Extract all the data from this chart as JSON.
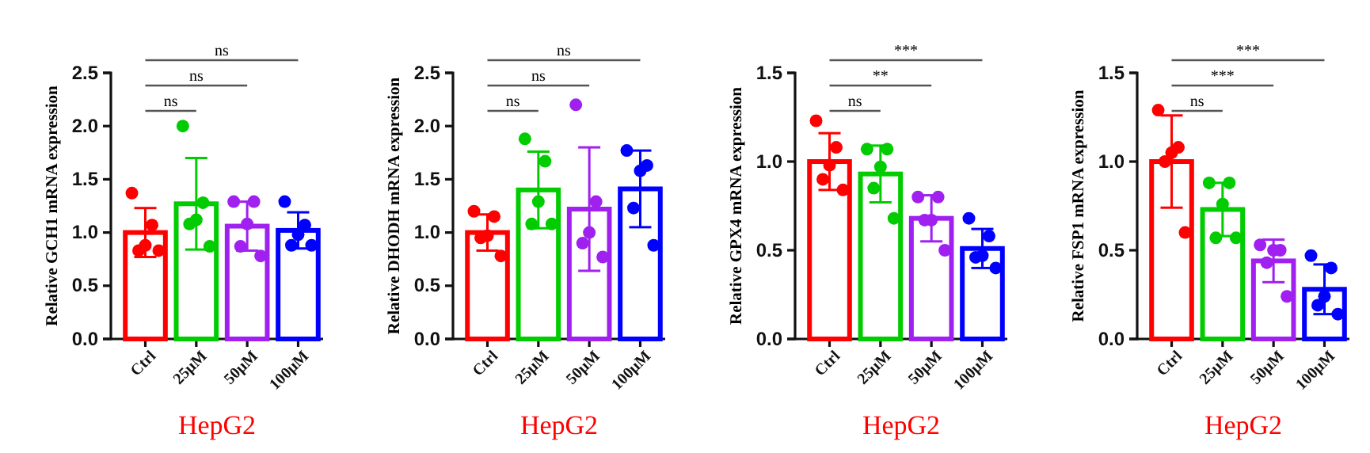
{
  "chart_data": [
    {
      "type": "bar",
      "ylabel": "Relative GCH1 mRNA expression",
      "xlabel": "HepG2",
      "categories": [
        "Ctrl",
        "25μM",
        "50μM",
        "100μM"
      ],
      "ylim": [
        0,
        2.5
      ],
      "yticks": [
        {
          "value": 0,
          "label": "0.0"
        },
        {
          "value": 0.5,
          "label": "0.5"
        },
        {
          "value": 1,
          "label": "1.0"
        },
        {
          "value": 1.5,
          "label": "1.5"
        },
        {
          "value": 2,
          "label": "2.0"
        },
        {
          "value": 2.5,
          "label": "2.5"
        }
      ],
      "annotations": [
        "ns",
        "ns",
        "ns"
      ],
      "series": [
        {
          "type": "bar",
          "values": [
            1.0,
            1.27,
            1.06,
            1.02
          ],
          "errors": [
            0.23,
            0.43,
            0.23,
            0.17
          ],
          "colors": [
            "#ff0000",
            "#00cc00",
            "#a020f0",
            "#0000ff"
          ]
        },
        {
          "type": "scatter",
          "x": [
            "Ctrl",
            "Ctrl",
            "Ctrl",
            "Ctrl",
            "Ctrl",
            "25μM",
            "25μM",
            "25μM",
            "25μM",
            "25μM",
            "50μM",
            "50μM",
            "50μM",
            "50μM",
            "50μM",
            "100μM",
            "100μM",
            "100μM",
            "100μM",
            "100μM"
          ],
          "values": [
            1.37,
            1.07,
            0.88,
            0.83,
            0.83,
            2.0,
            1.28,
            1.12,
            1.08,
            0.87,
            1.29,
            1.29,
            1.08,
            0.87,
            0.78,
            1.29,
            1.07,
            0.98,
            0.88,
            0.88
          ],
          "colors": [
            "#ff0000",
            "#ff0000",
            "#ff0000",
            "#ff0000",
            "#ff0000",
            "#00cc00",
            "#00cc00",
            "#00cc00",
            "#00cc00",
            "#00cc00",
            "#a020f0",
            "#a020f0",
            "#a020f0",
            "#a020f0",
            "#a020f0",
            "#0000ff",
            "#0000ff",
            "#0000ff",
            "#0000ff",
            "#0000ff"
          ]
        }
      ]
    },
    {
      "type": "bar",
      "ylabel": "Relative DHODH mRNA expression",
      "xlabel": "HepG2",
      "categories": [
        "Ctrl",
        "25μM",
        "50μM",
        "100μM"
      ],
      "ylim": [
        0,
        2.5
      ],
      "yticks": [
        {
          "value": 0,
          "label": "0.0"
        },
        {
          "value": 0.5,
          "label": "0.5"
        },
        {
          "value": 1,
          "label": "1.0"
        },
        {
          "value": 1.5,
          "label": "1.5"
        },
        {
          "value": 2,
          "label": "2.0"
        },
        {
          "value": 2.5,
          "label": "2.5"
        }
      ],
      "annotations": [
        "ns",
        "ns",
        "ns"
      ],
      "series": [
        {
          "type": "bar",
          "values": [
            1.0,
            1.4,
            1.22,
            1.41
          ],
          "errors": [
            0.17,
            0.36,
            0.58,
            0.36
          ],
          "colors": [
            "#ff0000",
            "#00cc00",
            "#a020f0",
            "#0000ff"
          ]
        },
        {
          "type": "scatter",
          "x": [
            "Ctrl",
            "Ctrl",
            "Ctrl",
            "Ctrl",
            "Ctrl",
            "25μM",
            "25μM",
            "25μM",
            "25μM",
            "25μM",
            "50μM",
            "50μM",
            "50μM",
            "50μM",
            "50μM",
            "100μM",
            "100μM",
            "100μM",
            "100μM",
            "100μM"
          ],
          "values": [
            1.2,
            1.15,
            0.97,
            0.95,
            0.78,
            1.88,
            1.67,
            1.29,
            1.08,
            1.08,
            2.2,
            1.29,
            1.0,
            0.9,
            0.77,
            1.77,
            1.63,
            1.58,
            1.23,
            0.88
          ],
          "colors": [
            "#ff0000",
            "#ff0000",
            "#ff0000",
            "#ff0000",
            "#ff0000",
            "#00cc00",
            "#00cc00",
            "#00cc00",
            "#00cc00",
            "#00cc00",
            "#a020f0",
            "#a020f0",
            "#a020f0",
            "#a020f0",
            "#a020f0",
            "#0000ff",
            "#0000ff",
            "#0000ff",
            "#0000ff",
            "#0000ff"
          ]
        }
      ]
    },
    {
      "type": "bar",
      "ylabel": "Relative GPX4 mRNA expression",
      "xlabel": "HepG2",
      "categories": [
        "Ctrl",
        "25μM",
        "50μM",
        "100μM"
      ],
      "ylim": [
        0,
        1.5
      ],
      "yticks": [
        {
          "value": 0,
          "label": "0.0"
        },
        {
          "value": 0.5,
          "label": "0.5"
        },
        {
          "value": 1,
          "label": "1.0"
        },
        {
          "value": 1.5,
          "label": "1.5"
        }
      ],
      "annotations": [
        "ns",
        "**",
        "***"
      ],
      "series": [
        {
          "type": "bar",
          "values": [
            1.0,
            0.93,
            0.68,
            0.51
          ],
          "errors": [
            0.16,
            0.16,
            0.13,
            0.11
          ],
          "colors": [
            "#ff0000",
            "#00cc00",
            "#a020f0",
            "#0000ff"
          ]
        },
        {
          "type": "scatter",
          "x": [
            "Ctrl",
            "Ctrl",
            "Ctrl",
            "Ctrl",
            "Ctrl",
            "25μM",
            "25μM",
            "25μM",
            "25μM",
            "25μM",
            "50μM",
            "50μM",
            "50μM",
            "50μM",
            "50μM",
            "100μM",
            "100μM",
            "100μM",
            "100μM",
            "100μM"
          ],
          "values": [
            1.23,
            1.08,
            0.98,
            0.9,
            0.84,
            1.07,
            1.07,
            0.97,
            0.85,
            0.68,
            0.8,
            0.8,
            0.67,
            0.67,
            0.5,
            0.68,
            0.58,
            0.47,
            0.46,
            0.4
          ],
          "colors": [
            "#ff0000",
            "#ff0000",
            "#ff0000",
            "#ff0000",
            "#ff0000",
            "#00cc00",
            "#00cc00",
            "#00cc00",
            "#00cc00",
            "#00cc00",
            "#a020f0",
            "#a020f0",
            "#a020f0",
            "#a020f0",
            "#a020f0",
            "#0000ff",
            "#0000ff",
            "#0000ff",
            "#0000ff",
            "#0000ff"
          ]
        }
      ]
    },
    {
      "type": "bar",
      "ylabel": "Relative FSP1 mRNA expression",
      "xlabel": "HepG2",
      "categories": [
        "Ctrl",
        "25μM",
        "50μM",
        "100μM"
      ],
      "ylim": [
        0,
        1.5
      ],
      "yticks": [
        {
          "value": 0,
          "label": "0.0"
        },
        {
          "value": 0.5,
          "label": "0.5"
        },
        {
          "value": 1,
          "label": "1.0"
        },
        {
          "value": 1.5,
          "label": "1.5"
        }
      ],
      "annotations": [
        "ns",
        "***",
        "***"
      ],
      "series": [
        {
          "type": "bar",
          "values": [
            1.0,
            0.73,
            0.44,
            0.28
          ],
          "errors": [
            0.26,
            0.15,
            0.12,
            0.14
          ],
          "colors": [
            "#ff0000",
            "#00cc00",
            "#a020f0",
            "#0000ff"
          ]
        },
        {
          "type": "scatter",
          "x": [
            "Ctrl",
            "Ctrl",
            "Ctrl",
            "Ctrl",
            "Ctrl",
            "25μM",
            "25μM",
            "25μM",
            "25μM",
            "25μM",
            "50μM",
            "50μM",
            "50μM",
            "50μM",
            "50μM",
            "100μM",
            "100μM",
            "100μM",
            "100μM",
            "100μM"
          ],
          "values": [
            1.29,
            1.08,
            1.05,
            1.0,
            0.6,
            0.88,
            0.88,
            0.76,
            0.57,
            0.57,
            0.53,
            0.5,
            0.5,
            0.43,
            0.24,
            0.47,
            0.4,
            0.24,
            0.19,
            0.14
          ],
          "colors": [
            "#ff0000",
            "#ff0000",
            "#ff0000",
            "#ff0000",
            "#ff0000",
            "#00cc00",
            "#00cc00",
            "#00cc00",
            "#00cc00",
            "#00cc00",
            "#a020f0",
            "#a020f0",
            "#a020f0",
            "#a020f0",
            "#a020f0",
            "#0000ff",
            "#0000ff",
            "#0000ff",
            "#0000ff",
            "#0000ff"
          ]
        }
      ]
    }
  ]
}
